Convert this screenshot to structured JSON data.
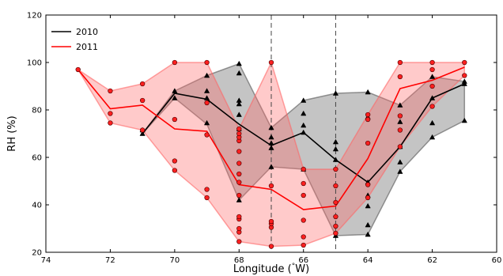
{
  "chart_data": {
    "type": "line",
    "xlabel": "Longitude ($^\\circ$W)",
    "xlabel_parts": {
      "before": "Longitude (",
      "degree": "°",
      "after": "W)"
    },
    "ylabel": "RH (%)",
    "xlim": [
      74,
      60
    ],
    "ylim": [
      20,
      120
    ],
    "xticks": [
      "74",
      "72",
      "70",
      "68",
      "66",
      "64",
      "62",
      "60"
    ],
    "yticks": [
      "20",
      "40",
      "60",
      "80",
      "100",
      "120"
    ],
    "grid": false,
    "legend_position": "top-left",
    "vertical_lines": [
      67,
      65
    ],
    "series": [
      {
        "name": "2010",
        "color": "#000000",
        "band_color": "#555555",
        "marker": "triangle",
        "x": [
          71,
          70,
          69,
          68,
          67,
          66,
          65,
          64,
          63,
          62,
          61
        ],
        "y": [
          70,
          87,
          84.5,
          74,
          65,
          70.5,
          59,
          49.5,
          64.5,
          85,
          91
        ],
        "band_min": [
          70,
          85,
          74,
          42,
          56,
          55,
          27,
          27.5,
          54,
          68.5,
          75.5
        ],
        "band_max": [
          70,
          88,
          94.5,
          99.5,
          72.5,
          84,
          87,
          87.5,
          82,
          94,
          92
        ],
        "points": [
          [
            71,
            70
          ],
          [
            71,
            71.5
          ],
          [
            70,
            85
          ],
          [
            70,
            88
          ],
          [
            69,
            74.5
          ],
          [
            69,
            85
          ],
          [
            69,
            88
          ],
          [
            69,
            94.5
          ],
          [
            68,
            42
          ],
          [
            68,
            72
          ],
          [
            68,
            78
          ],
          [
            68,
            82.5
          ],
          [
            68,
            84
          ],
          [
            68,
            95.5
          ],
          [
            68,
            99.5
          ],
          [
            67,
            56
          ],
          [
            67,
            64
          ],
          [
            67,
            66
          ],
          [
            67,
            68.5
          ],
          [
            67,
            72.5
          ],
          [
            66,
            55
          ],
          [
            66,
            70.5
          ],
          [
            66,
            73.5
          ],
          [
            66,
            78.5
          ],
          [
            66,
            84
          ],
          [
            65,
            27
          ],
          [
            65,
            59
          ],
          [
            65,
            63.5
          ],
          [
            65,
            66.5
          ],
          [
            65,
            87
          ],
          [
            64,
            27.5
          ],
          [
            64,
            31.5
          ],
          [
            64,
            39.5
          ],
          [
            64,
            44
          ],
          [
            64,
            49.5
          ],
          [
            64,
            77
          ],
          [
            64,
            87.5
          ],
          [
            63,
            54
          ],
          [
            63,
            58
          ],
          [
            63,
            64.5
          ],
          [
            63,
            75
          ],
          [
            63,
            82
          ],
          [
            62,
            68.5
          ],
          [
            62,
            74.5
          ],
          [
            62,
            85
          ],
          [
            62,
            94
          ],
          [
            61,
            75.5
          ],
          [
            61,
            91
          ],
          [
            61,
            92
          ]
        ]
      },
      {
        "name": "2011",
        "color": "#ff0000",
        "band_color": "#ff6666",
        "marker": "circle",
        "x": [
          73,
          72,
          71,
          70,
          69,
          68,
          67,
          66,
          65,
          64,
          63,
          62,
          61
        ],
        "y": [
          97,
          80.5,
          82,
          72,
          71,
          48.5,
          46.5,
          38,
          39.5,
          59.5,
          89,
          92.5,
          98
        ],
        "band_min": [
          97,
          74.5,
          71.5,
          54.5,
          43,
          24.5,
          22.5,
          23,
          28,
          43,
          64.5,
          81.5,
          94.5
        ],
        "band_max": [
          97,
          88,
          91,
          100,
          100,
          72,
          100,
          55,
          55,
          78,
          100,
          100,
          100
        ],
        "points": [
          [
            73,
            97
          ],
          [
            72,
            74.5
          ],
          [
            72,
            78.5
          ],
          [
            72,
            88
          ],
          [
            71,
            71.5
          ],
          [
            71,
            84
          ],
          [
            71,
            91
          ],
          [
            70,
            54.5
          ],
          [
            70,
            58.5
          ],
          [
            70,
            76
          ],
          [
            70,
            100
          ],
          [
            69,
            43
          ],
          [
            69,
            46.5
          ],
          [
            69,
            69.5
          ],
          [
            69,
            83
          ],
          [
            69,
            100
          ],
          [
            68,
            24.5
          ],
          [
            68,
            28.5
          ],
          [
            68,
            30
          ],
          [
            68,
            34
          ],
          [
            68,
            35
          ],
          [
            68,
            44
          ],
          [
            68,
            49.5
          ],
          [
            68,
            53
          ],
          [
            68,
            57.5
          ],
          [
            68,
            62.5
          ],
          [
            68,
            67
          ],
          [
            68,
            68.5
          ],
          [
            68,
            70
          ],
          [
            68,
            72
          ],
          [
            67,
            22.5
          ],
          [
            67,
            30.5
          ],
          [
            67,
            32
          ],
          [
            67,
            33
          ],
          [
            67,
            48
          ],
          [
            67,
            100
          ],
          [
            66,
            23
          ],
          [
            66,
            26.5
          ],
          [
            66,
            33.5
          ],
          [
            66,
            44
          ],
          [
            66,
            49
          ],
          [
            66,
            55
          ],
          [
            65,
            28
          ],
          [
            65,
            31
          ],
          [
            65,
            35
          ],
          [
            65,
            41
          ],
          [
            65,
            48
          ],
          [
            65,
            55
          ],
          [
            64,
            43
          ],
          [
            64,
            48.5
          ],
          [
            64,
            66
          ],
          [
            64,
            76
          ],
          [
            64,
            78
          ],
          [
            63,
            64.5
          ],
          [
            63,
            71.5
          ],
          [
            63,
            77.5
          ],
          [
            63,
            94
          ],
          [
            63,
            100
          ],
          [
            62,
            81.5
          ],
          [
            62,
            90
          ],
          [
            62,
            97
          ],
          [
            62,
            100
          ],
          [
            61,
            94.5
          ],
          [
            61,
            100
          ]
        ]
      }
    ]
  }
}
